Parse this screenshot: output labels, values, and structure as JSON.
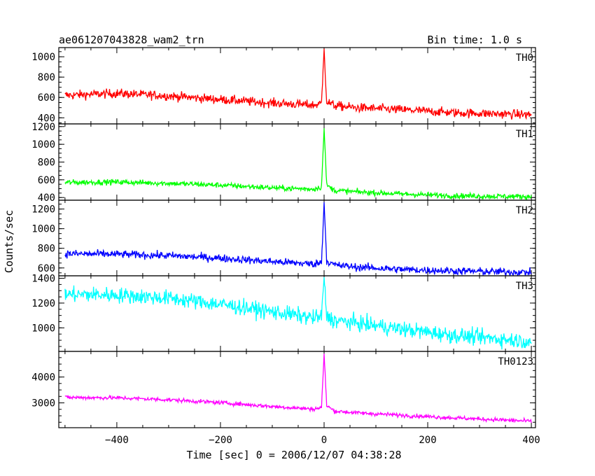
{
  "header": {
    "title": "ae061207043828_wam2_trn",
    "bin_time": "Bin time: 1.0 s"
  },
  "axes": {
    "ylabel": "Counts/sec",
    "xlabel": "Time [sec] 0 = 2006/12/07 04:38:28"
  },
  "chart_data": [
    {
      "type": "line",
      "panel_label": "TH0",
      "color": "#ff0000",
      "xlim": [
        -512,
        408
      ],
      "ylim": [
        340,
        1090
      ],
      "yticks": [
        400,
        600,
        800,
        1000
      ],
      "ytick_labels": [
        "400",
        "600",
        "800",
        "1000"
      ],
      "x": [
        -500,
        -400,
        -300,
        -200,
        -100,
        -20,
        -5,
        0,
        5,
        20,
        60,
        150,
        250,
        400
      ],
      "y": [
        620,
        640,
        615,
        580,
        545,
        525,
        540,
        1080,
        560,
        520,
        500,
        480,
        450,
        430
      ],
      "noise": 32
    },
    {
      "type": "line",
      "panel_label": "TH1",
      "color": "#00ff00",
      "xlim": [
        -512,
        408
      ],
      "ylim": [
        370,
        1230
      ],
      "yticks": [
        400,
        600,
        800,
        1000,
        1200
      ],
      "ytick_labels": [
        "400",
        "600",
        "800",
        "1000",
        "1200"
      ],
      "x": [
        -500,
        -400,
        -300,
        -200,
        -100,
        -20,
        -5,
        0,
        5,
        20,
        60,
        150,
        250,
        400
      ],
      "y": [
        570,
        575,
        560,
        540,
        510,
        495,
        520,
        1180,
        540,
        480,
        465,
        440,
        420,
        410
      ],
      "noise": 22
    },
    {
      "type": "line",
      "panel_label": "TH2",
      "color": "#0000ff",
      "xlim": [
        -512,
        408
      ],
      "ylim": [
        520,
        1290
      ],
      "yticks": [
        600,
        800,
        1000,
        1200
      ],
      "ytick_labels": [
        "600",
        "800",
        "1000",
        "1200"
      ],
      "x": [
        -500,
        -400,
        -300,
        -200,
        -100,
        -20,
        -5,
        0,
        5,
        20,
        60,
        150,
        250,
        400
      ],
      "y": [
        745,
        740,
        725,
        700,
        665,
        640,
        660,
        1270,
        670,
        630,
        610,
        585,
        570,
        555
      ],
      "noise": 28
    },
    {
      "type": "line",
      "panel_label": "TH3",
      "color": "#00ffff",
      "xlim": [
        -512,
        408
      ],
      "ylim": [
        810,
        1420
      ],
      "yticks": [
        1000,
        1200,
        1400
      ],
      "ytick_labels": [
        "1000",
        "1200",
        "1400"
      ],
      "x": [
        -500,
        -400,
        -300,
        -200,
        -100,
        -20,
        -5,
        0,
        5,
        20,
        60,
        150,
        250,
        400
      ],
      "y": [
        1270,
        1265,
        1240,
        1190,
        1130,
        1080,
        1090,
        1410,
        1090,
        1060,
        1040,
        990,
        940,
        890
      ],
      "noise": 45
    },
    {
      "type": "line",
      "panel_label": "TH0123",
      "color": "#ff00ff",
      "xlim": [
        -512,
        408
      ],
      "ylim": [
        2040,
        4990
      ],
      "yticks": [
        3000,
        4000
      ],
      "ytick_labels": [
        "3000",
        "4000"
      ],
      "x": [
        -500,
        -400,
        -300,
        -200,
        -100,
        -20,
        -5,
        0,
        5,
        20,
        60,
        150,
        250,
        400
      ],
      "y": [
        3210,
        3195,
        3120,
        3010,
        2860,
        2760,
        2820,
        4900,
        2900,
        2680,
        2620,
        2520,
        2420,
        2290
      ],
      "noise": 55
    }
  ],
  "xaxis": {
    "ticks": [
      -400,
      -200,
      0,
      200,
      400
    ],
    "tick_labels": [
      "−400",
      "−200",
      "0",
      "200",
      "400"
    ]
  }
}
